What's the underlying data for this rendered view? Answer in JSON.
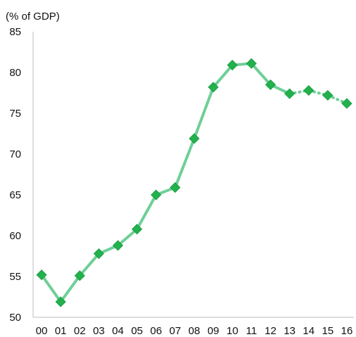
{
  "chart_data": {
    "type": "line",
    "title": "",
    "ylabel": "(% of GDP)",
    "xlabel": "",
    "ylim": [
      50,
      85
    ],
    "yticks": [
      50,
      55,
      60,
      65,
      70,
      75,
      80,
      85
    ],
    "categories": [
      "00",
      "01",
      "02",
      "03",
      "04",
      "05",
      "06",
      "07",
      "08",
      "09",
      "10",
      "11",
      "12",
      "13",
      "14",
      "15",
      "16"
    ],
    "series": [
      {
        "values": [
          55.2,
          51.9,
          55.1,
          57.8,
          58.8,
          60.8,
          65.0,
          65.9,
          71.9,
          78.2,
          80.9,
          81.1,
          78.5,
          77.4,
          77.8,
          77.2,
          76.2
        ],
        "color": "#6fcf97",
        "marker_color": "#22b14c",
        "projected_from_index": 13
      }
    ],
    "grid": false,
    "legend": "none"
  }
}
